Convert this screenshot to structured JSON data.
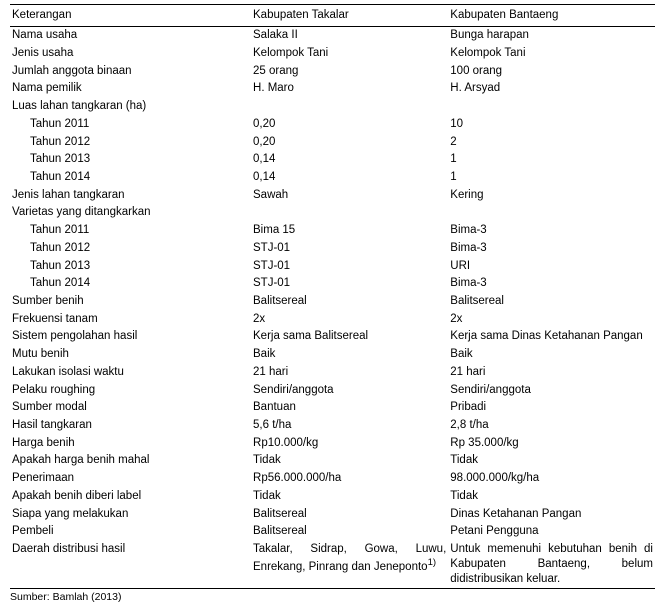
{
  "header": {
    "c1": "Keterangan",
    "c2": "Kabupaten Takalar",
    "c3": "Kabupaten Bantaeng"
  },
  "rows": [
    {
      "k": "Nama usaha",
      "a": "Salaka II",
      "b": "Bunga harapan"
    },
    {
      "k": "Jenis usaha",
      "a": "Kelompok Tani",
      "b": "Kelompok Tani"
    },
    {
      "k": "Jumlah anggota binaan",
      "a": "25 orang",
      "b": "100  orang"
    },
    {
      "k": "Nama pemilik",
      "a": "H. Maro",
      "b": "H. Arsyad"
    },
    {
      "k": "Luas lahan tangkaran (ha)",
      "a": "",
      "b": ""
    },
    {
      "k": "Tahun 2011",
      "a": "0,20",
      "b": "10",
      "indent": true
    },
    {
      "k": "Tahun 2012",
      "a": "0,20",
      "b": "2",
      "indent": true
    },
    {
      "k": "Tahun 2013",
      "a": "0,14",
      "b": "1",
      "indent": true
    },
    {
      "k": "Tahun 2014",
      "a": "0,14",
      "b": "1",
      "indent": true
    },
    {
      "k": "Jenis lahan tangkaran",
      "a": "Sawah",
      "b": "Kering"
    },
    {
      "k": "Varietas yang ditangkarkan",
      "a": "",
      "b": ""
    },
    {
      "k": "Tahun 2011",
      "a": "Bima 15",
      "b": "Bima-3",
      "indent": true
    },
    {
      "k": "Tahun 2012",
      "a": "STJ-01",
      "b": "Bima-3",
      "indent": true
    },
    {
      "k": "Tahun 2013",
      "a": "STJ-01",
      "b": "URI",
      "indent": true
    },
    {
      "k": "Tahun 2014",
      "a": "STJ-01",
      "b": "Bima-3",
      "indent": true
    },
    {
      "k": "Sumber benih",
      "a": "Balitsereal",
      "b": "Balitsereal"
    },
    {
      "k": "Frekuensi tanam",
      "a": "2x",
      "b": "2x"
    },
    {
      "k": "Sistem pengolahan hasil",
      "a": "Kerja sama Balitsereal",
      "b": "Kerja sama Dinas Ketahanan Pangan",
      "bjust": true
    },
    {
      "k": "Mutu benih",
      "a": "Baik",
      "b": "Baik"
    },
    {
      "k": "Lakukan isolasi waktu",
      "a": "21 hari",
      "b": "21 hari"
    },
    {
      "k": "Pelaku roughing",
      "a": "Sendiri/anggota",
      "b": "Sendiri/anggota"
    },
    {
      "k": "Sumber modal",
      "a": "Bantuan",
      "b": "Pribadi"
    },
    {
      "k": "Hasil tangkaran",
      "a": "5,6 t/ha",
      "b": "2,8 t/ha"
    },
    {
      "k": "Harga benih",
      "a": "Rp10.000/kg",
      "b": "Rp 35.000/kg"
    },
    {
      "k": "Apakah harga benih mahal",
      "a": "Tidak",
      "b": "Tidak"
    },
    {
      "k": "Penerimaan",
      "a": "Rp56.000.000/ha",
      "b": "98.000.000/kg/ha"
    },
    {
      "k": " Apakah benih diberi label",
      "a": "Tidak",
      "b": "Tidak"
    },
    {
      "k": "Siapa yang melakukan",
      "a": "Balitsereal",
      "b": "Dinas Ketahanan Pangan"
    },
    {
      "k": "Pembeli",
      "a": "Balitsereal",
      "b": "Petani Pengguna"
    }
  ],
  "lastRow": {
    "k": "Daerah distribusi hasil",
    "a": "Takalar, Sidrap, Gowa, Luwu, Enrekang, Pinrang dan Jeneponto",
    "aSup": "1)",
    "b": "Untuk memenuhi kebutuhan benih di Kabupaten Bantaeng, belum didistribusikan keluar."
  },
  "footer": "Sumber: Bamlah (2013)"
}
